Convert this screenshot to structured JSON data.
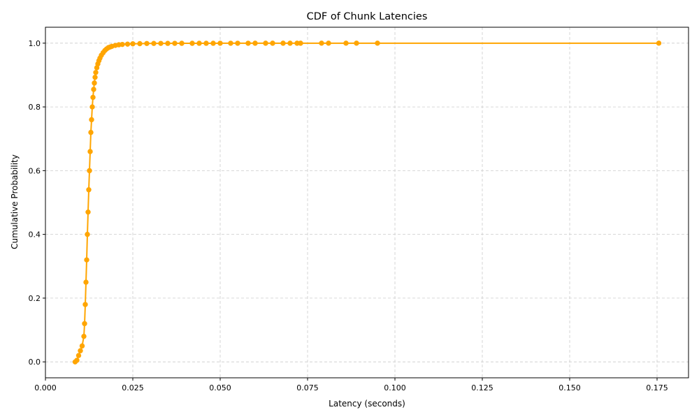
{
  "chart_data": {
    "type": "line",
    "title": "CDF of Chunk Latencies",
    "xlabel": "Latency (seconds)",
    "ylabel": "Cumulative Probability",
    "xlim": [
      0.0,
      0.184
    ],
    "ylim": [
      -0.05,
      1.05
    ],
    "xticks": [
      0.0,
      0.025,
      0.05,
      0.075,
      0.1,
      0.125,
      0.15,
      0.175
    ],
    "xtick_labels": [
      "0.000",
      "0.025",
      "0.050",
      "0.075",
      "0.100",
      "0.125",
      "0.150",
      "0.175"
    ],
    "yticks": [
      0.0,
      0.2,
      0.4,
      0.6,
      0.8,
      1.0
    ],
    "ytick_labels": [
      "0.0",
      "0.2",
      "0.4",
      "0.6",
      "0.8",
      "1.0"
    ],
    "grid": true,
    "grid_style": "dashed",
    "legend": "none",
    "colors": {
      "series": "#ffa500",
      "grid": "#cccccc",
      "axis": "#000000"
    },
    "series": [
      {
        "marker": "circle",
        "x": [
          0.0085,
          0.009,
          0.0095,
          0.01,
          0.0105,
          0.011,
          0.0112,
          0.0114,
          0.0116,
          0.0118,
          0.012,
          0.0122,
          0.0124,
          0.0126,
          0.0128,
          0.013,
          0.0132,
          0.0134,
          0.0136,
          0.0138,
          0.014,
          0.0142,
          0.0144,
          0.0147,
          0.015,
          0.0153,
          0.0156,
          0.016,
          0.0165,
          0.017,
          0.0175,
          0.018,
          0.0185,
          0.019,
          0.02,
          0.021,
          0.022,
          0.0235,
          0.025,
          0.027,
          0.029,
          0.031,
          0.033,
          0.035,
          0.037,
          0.039,
          0.042,
          0.044,
          0.046,
          0.048,
          0.05,
          0.053,
          0.055,
          0.058,
          0.06,
          0.063,
          0.065,
          0.068,
          0.07,
          0.072,
          0.073,
          0.079,
          0.081,
          0.086,
          0.089,
          0.095,
          0.1755
        ],
        "y": [
          0.0,
          0.005,
          0.02,
          0.035,
          0.05,
          0.08,
          0.12,
          0.18,
          0.25,
          0.32,
          0.4,
          0.47,
          0.54,
          0.6,
          0.66,
          0.72,
          0.76,
          0.8,
          0.83,
          0.855,
          0.875,
          0.893,
          0.908,
          0.923,
          0.935,
          0.945,
          0.953,
          0.962,
          0.97,
          0.977,
          0.982,
          0.986,
          0.988,
          0.99,
          0.993,
          0.995,
          0.996,
          0.997,
          0.998,
          0.9985,
          0.999,
          0.9992,
          0.9993,
          0.9994,
          0.9995,
          0.9996,
          0.9996,
          0.9997,
          0.9997,
          0.9997,
          0.9998,
          0.9998,
          0.9998,
          0.9998,
          0.9999,
          0.9999,
          0.9999,
          0.9999,
          0.9999,
          0.9999,
          0.9999,
          1.0,
          1.0,
          1.0,
          1.0,
          1.0,
          1.0
        ]
      }
    ]
  }
}
